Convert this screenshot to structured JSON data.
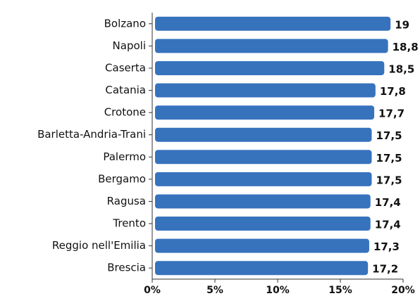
{
  "chart_data": {
    "type": "hbar",
    "categories": [
      "Bolzano",
      "Napoli",
      "Caserta",
      "Catania",
      "Crotone",
      "Barletta-Andria-Trani",
      "Palermo",
      "Bergamo",
      "Ragusa",
      "Trento",
      "Reggio nell'Emilia",
      "Brescia"
    ],
    "values": [
      19,
      18.8,
      18.5,
      17.8,
      17.7,
      17.5,
      17.5,
      17.5,
      17.4,
      17.4,
      17.3,
      17.2
    ],
    "value_labels": [
      "19",
      "18,8",
      "18,5",
      "17,8",
      "17,7",
      "17,5",
      "17,5",
      "17,5",
      "17,4",
      "17,4",
      "17,3",
      "17,2"
    ],
    "color": "#3773bd",
    "xlim": [
      0,
      20
    ],
    "xticks": [
      {
        "value": 0,
        "label": "0%"
      },
      {
        "value": 5,
        "label": "5%"
      },
      {
        "value": 10,
        "label": "10%"
      },
      {
        "value": 15,
        "label": "15%"
      },
      {
        "value": 20,
        "label": "20%"
      }
    ]
  }
}
